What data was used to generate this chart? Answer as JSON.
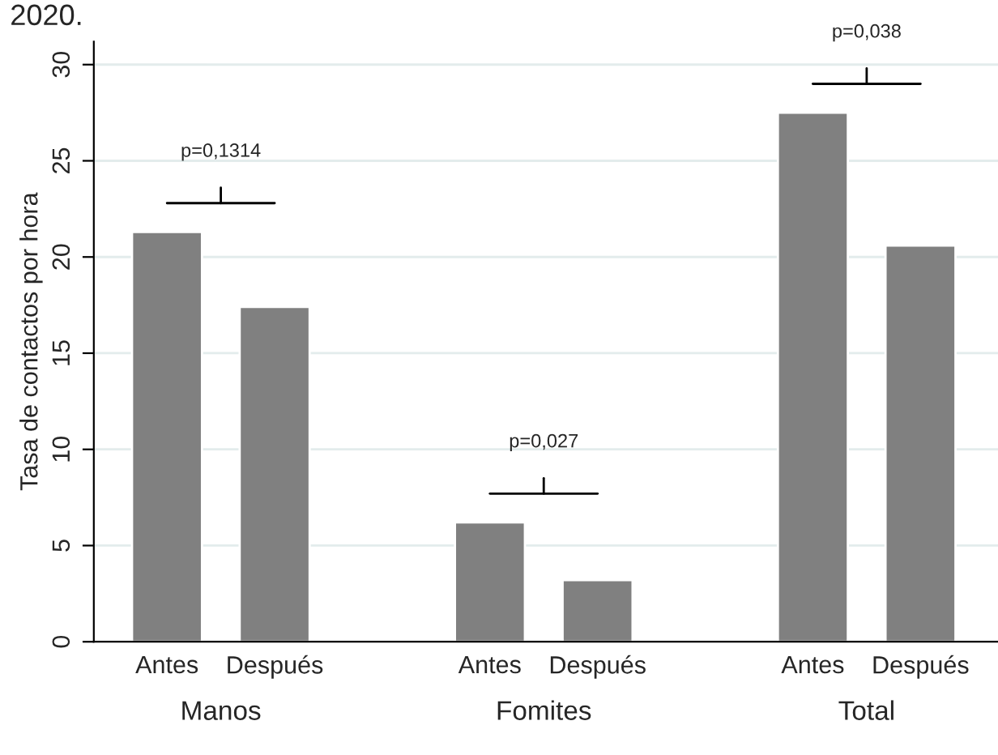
{
  "chart_data": {
    "type": "bar",
    "title": "2020.",
    "ylabel": "Tasa de contactos por hora",
    "categories": [
      "Antes",
      "Después",
      null,
      "Antes",
      "Después",
      null,
      "Antes",
      "Después"
    ],
    "values": [
      21.3,
      17.4,
      null,
      6.2,
      3.2,
      null,
      27.5,
      20.6
    ],
    "color": "#808080",
    "ylim": [
      0,
      31.2
    ],
    "yticks": [
      0,
      5,
      10,
      15,
      20,
      25,
      30
    ],
    "grid": "y",
    "annotations": [
      "Manos",
      "Fomites",
      "Total",
      "p=0,1314",
      "p=0,027",
      "p=0,038"
    ]
  }
}
